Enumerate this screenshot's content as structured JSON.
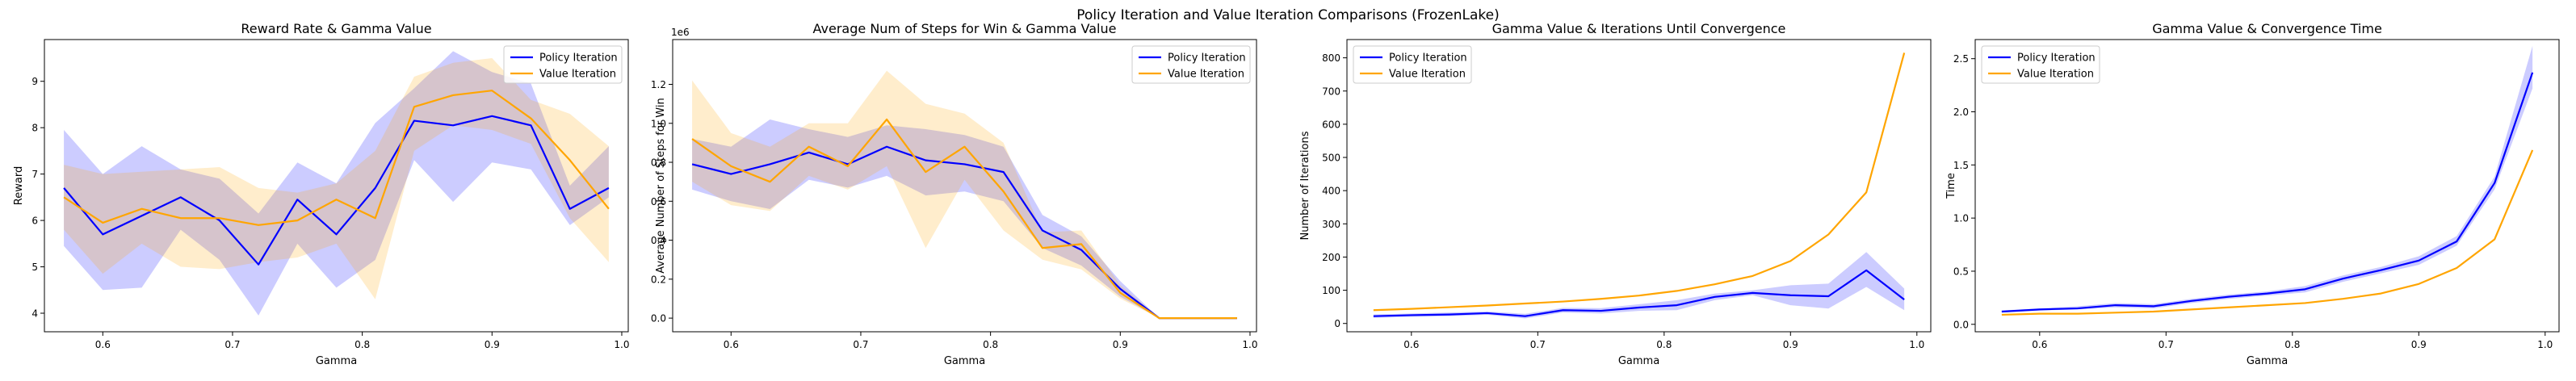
{
  "figure": {
    "suptitle": "Policy Iteration and Value Iteration Comparisons (FrozenLake)"
  },
  "colors": {
    "policy": "#0000ff",
    "value": "#ffa500"
  },
  "chart_data": [
    {
      "type": "line",
      "title": "Reward Rate & Gamma Value",
      "xlabel": "Gamma",
      "ylabel": "Reward",
      "xlim": [
        0.555,
        1.005
      ],
      "ylim": [
        3.6,
        9.9
      ],
      "xticks": [
        0.6,
        0.7,
        0.8,
        0.9,
        1.0
      ],
      "xtick_labels": [
        "0.6",
        "0.7",
        "0.8",
        "0.9",
        "1.0"
      ],
      "yticks": [
        4,
        5,
        6,
        7,
        8,
        9
      ],
      "ytick_labels": [
        "4",
        "5",
        "6",
        "7",
        "8",
        "9"
      ],
      "legend_position": "upper right",
      "x": [
        0.57,
        0.6,
        0.63,
        0.66,
        0.69,
        0.72,
        0.75,
        0.78,
        0.81,
        0.84,
        0.87,
        0.9,
        0.93,
        0.96,
        0.99
      ],
      "series": [
        {
          "name": "Policy Iteration",
          "color": "#0000ff",
          "values": [
            6.7,
            5.7,
            6.1,
            6.5,
            6.0,
            5.05,
            6.45,
            5.7,
            6.7,
            8.15,
            8.05,
            8.25,
            8.05,
            6.25,
            6.7
          ],
          "lower": [
            5.45,
            4.5,
            4.55,
            5.8,
            5.15,
            3.95,
            5.5,
            4.55,
            5.15,
            7.3,
            6.4,
            7.25,
            7.1,
            5.9,
            6.5
          ],
          "upper": [
            7.95,
            7.0,
            7.6,
            7.1,
            6.9,
            6.15,
            7.25,
            6.8,
            8.1,
            8.85,
            9.65,
            9.2,
            8.95,
            6.75,
            7.6
          ]
        },
        {
          "name": "Value Iteration",
          "color": "#ffa500",
          "values": [
            6.5,
            5.95,
            6.25,
            6.05,
            6.05,
            5.9,
            6.0,
            6.45,
            6.05,
            8.45,
            8.7,
            8.8,
            8.2,
            7.3,
            6.25
          ],
          "lower": [
            5.8,
            4.85,
            5.5,
            5.0,
            4.95,
            5.1,
            5.2,
            5.5,
            4.3,
            7.5,
            8.05,
            7.95,
            7.65,
            6.05,
            5.1
          ],
          "upper": [
            7.2,
            7.0,
            7.05,
            7.1,
            7.15,
            6.7,
            6.6,
            6.8,
            7.5,
            9.1,
            9.4,
            9.5,
            8.6,
            8.3,
            7.6
          ]
        }
      ]
    },
    {
      "type": "line",
      "title": "Average Num of Steps for Win & Gamma Value",
      "xlabel": "Gamma",
      "ylabel": "Average Number of Steps for Win",
      "offset_text": "1e6",
      "xlim": [
        0.555,
        1.005
      ],
      "ylim": [
        -0.07,
        1.43
      ],
      "xticks": [
        0.6,
        0.7,
        0.8,
        0.9,
        1.0
      ],
      "xtick_labels": [
        "0.6",
        "0.7",
        "0.8",
        "0.9",
        "1.0"
      ],
      "yticks": [
        0.0,
        0.2,
        0.4,
        0.6,
        0.8,
        1.0,
        1.2
      ],
      "ytick_labels": [
        "0.0",
        "0.2",
        "0.4",
        "0.6",
        "0.8",
        "1.0",
        "1.2"
      ],
      "legend_position": "upper right",
      "x": [
        0.57,
        0.6,
        0.63,
        0.66,
        0.69,
        0.72,
        0.75,
        0.78,
        0.81,
        0.84,
        0.87,
        0.9,
        0.93,
        0.96,
        0.99
      ],
      "series": [
        {
          "name": "Policy Iteration",
          "color": "#0000ff",
          "values": [
            0.79,
            0.74,
            0.79,
            0.85,
            0.79,
            0.88,
            0.81,
            0.79,
            0.75,
            0.45,
            0.35,
            0.15,
            0.0,
            0.0,
            0.0
          ],
          "lower": [
            0.66,
            0.6,
            0.56,
            0.71,
            0.67,
            0.73,
            0.63,
            0.65,
            0.6,
            0.36,
            0.27,
            0.11,
            0.0,
            0.0,
            0.0
          ],
          "upper": [
            0.92,
            0.88,
            1.02,
            0.97,
            0.93,
            0.99,
            0.97,
            0.94,
            0.88,
            0.53,
            0.42,
            0.19,
            0.0,
            0.0,
            0.0
          ]
        },
        {
          "name": "Value Iteration",
          "color": "#ffa500",
          "values": [
            0.92,
            0.78,
            0.7,
            0.88,
            0.78,
            1.02,
            0.75,
            0.88,
            0.65,
            0.36,
            0.38,
            0.13,
            0.0,
            0.0,
            0.0
          ],
          "lower": [
            0.7,
            0.58,
            0.55,
            0.73,
            0.66,
            0.78,
            0.36,
            0.71,
            0.45,
            0.3,
            0.25,
            0.1,
            0.0,
            0.0,
            0.0
          ],
          "upper": [
            1.22,
            0.95,
            0.88,
            1.0,
            1.0,
            1.27,
            1.1,
            1.05,
            0.9,
            0.44,
            0.45,
            0.17,
            0.0,
            0.0,
            0.0
          ]
        }
      ]
    },
    {
      "type": "line",
      "title": "Gamma Value & Iterations Until Convergence",
      "xlabel": "Gamma",
      "ylabel": "Number of Iterations",
      "xlim": [
        0.549,
        1.011
      ],
      "ylim": [
        -25,
        855
      ],
      "xticks": [
        0.6,
        0.7,
        0.8,
        0.9,
        1.0
      ],
      "xtick_labels": [
        "0.6",
        "0.7",
        "0.8",
        "0.9",
        "1.0"
      ],
      "yticks": [
        0,
        100,
        200,
        300,
        400,
        500,
        600,
        700,
        800
      ],
      "ytick_labels": [
        "0",
        "100",
        "200",
        "300",
        "400",
        "500",
        "600",
        "700",
        "800"
      ],
      "legend_position": "upper left",
      "x": [
        0.57,
        0.6,
        0.63,
        0.66,
        0.69,
        0.72,
        0.75,
        0.78,
        0.81,
        0.84,
        0.87,
        0.9,
        0.93,
        0.96,
        0.99
      ],
      "series": [
        {
          "name": "Policy Iteration",
          "color": "#0000ff",
          "values": [
            22,
            25,
            27,
            31,
            22,
            40,
            38,
            48,
            55,
            80,
            92,
            85,
            82,
            160,
            72
          ],
          "lower": [
            17,
            20,
            22,
            26,
            15,
            33,
            30,
            38,
            40,
            70,
            85,
            55,
            45,
            110,
            40
          ],
          "upper": [
            27,
            30,
            33,
            36,
            29,
            47,
            46,
            58,
            70,
            90,
            100,
            115,
            120,
            215,
            105
          ]
        },
        {
          "name": "Value Iteration",
          "color": "#ffa500",
          "values": [
            40,
            44,
            49,
            54,
            60,
            66,
            74,
            84,
            98,
            118,
            143,
            188,
            268,
            395,
            815
          ]
        }
      ]
    },
    {
      "type": "line",
      "title": "Gamma Value & Convergence Time",
      "xlabel": "Gamma",
      "ylabel": "Time",
      "xlim": [
        0.549,
        1.011
      ],
      "ylim": [
        -0.07,
        2.68
      ],
      "xticks": [
        0.6,
        0.7,
        0.8,
        0.9,
        1.0
      ],
      "xtick_labels": [
        "0.6",
        "0.7",
        "0.8",
        "0.9",
        "1.0"
      ],
      "yticks": [
        0.0,
        0.5,
        1.0,
        1.5,
        2.0,
        2.5
      ],
      "ytick_labels": [
        "0.0",
        "0.5",
        "1.0",
        "1.5",
        "2.0",
        "2.5"
      ],
      "legend_position": "upper left",
      "x": [
        0.57,
        0.6,
        0.63,
        0.66,
        0.69,
        0.72,
        0.75,
        0.78,
        0.81,
        0.84,
        0.87,
        0.9,
        0.93,
        0.96,
        0.99
      ],
      "series": [
        {
          "name": "Policy Iteration",
          "color": "#0000ff",
          "values": [
            0.12,
            0.14,
            0.15,
            0.18,
            0.17,
            0.22,
            0.26,
            0.29,
            0.33,
            0.43,
            0.51,
            0.6,
            0.78,
            1.33,
            2.37
          ],
          "lower": [
            0.11,
            0.13,
            0.14,
            0.16,
            0.15,
            0.2,
            0.24,
            0.27,
            0.3,
            0.4,
            0.48,
            0.56,
            0.74,
            1.27,
            2.22
          ],
          "upper": [
            0.13,
            0.15,
            0.17,
            0.2,
            0.19,
            0.24,
            0.28,
            0.31,
            0.36,
            0.46,
            0.54,
            0.64,
            0.83,
            1.39,
            2.62
          ]
        },
        {
          "name": "Value Iteration",
          "color": "#ffa500",
          "values": [
            0.09,
            0.1,
            0.1,
            0.11,
            0.12,
            0.14,
            0.16,
            0.18,
            0.2,
            0.24,
            0.29,
            0.38,
            0.53,
            0.8,
            1.64
          ]
        }
      ]
    }
  ]
}
